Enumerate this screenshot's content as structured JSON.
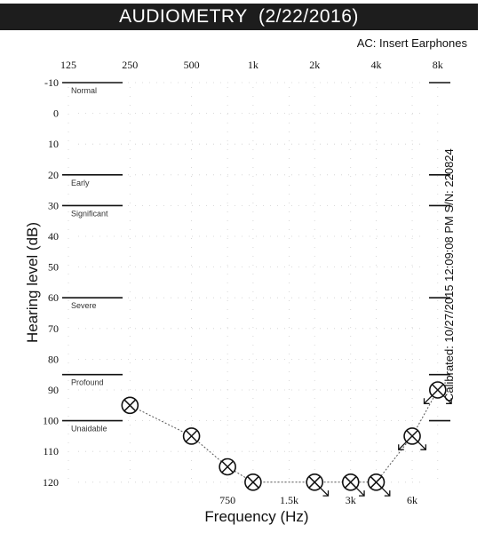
{
  "header": {
    "title": "AUDIOMETRY",
    "date": "(2/22/2016)",
    "transducer": "AC: Insert Earphones",
    "calibration": "Calibrated: 10/27/2015 12:09:08 PM  S/N: 220824"
  },
  "colors": {
    "title_bg": "#1d1d1d",
    "ink": "#111111",
    "grid": "#cfcfcf"
  },
  "chart_data": {
    "type": "scatter",
    "xlabel": "Frequency (Hz)",
    "ylabel": "Hearing level (dB)",
    "x_scale": "log",
    "ylim": [
      -10,
      120
    ],
    "y_inverted": true,
    "x_ticks_top": [
      "125",
      "250",
      "500",
      "1k",
      "2k",
      "4k",
      "8k"
    ],
    "x_ticks_bottom": [
      "750",
      "1.5k",
      "3k",
      "6k"
    ],
    "y_ticks": [
      "-10",
      "0",
      "10",
      "20",
      "30",
      "40",
      "50",
      "60",
      "70",
      "80",
      "90",
      "100",
      "110",
      "120"
    ],
    "grid": "dotted",
    "severity_bands": [
      {
        "label": "Normal",
        "level": -10
      },
      {
        "label": "Early",
        "level": 20
      },
      {
        "label": "Significant",
        "level": 30
      },
      {
        "label": "Severe",
        "level": 60
      },
      {
        "label": "Profound",
        "level": 85
      },
      {
        "label": "Unaidable",
        "level": 100
      }
    ],
    "series": [
      {
        "symbol": "circle-x",
        "points": [
          {
            "x": 250,
            "y": 95,
            "no_response": false
          },
          {
            "x": 500,
            "y": 105,
            "no_response": false
          },
          {
            "x": 750,
            "y": 115,
            "no_response": false
          },
          {
            "x": 1000,
            "y": 120,
            "no_response": false
          },
          {
            "x": 2000,
            "y": 120,
            "no_response": true
          },
          {
            "x": 3000,
            "y": 120,
            "no_response": true
          },
          {
            "x": 4000,
            "y": 120,
            "no_response": true
          },
          {
            "x": 6000,
            "y": 105,
            "no_response": true
          },
          {
            "x": 8000,
            "y": 90,
            "no_response": true
          }
        ]
      }
    ]
  }
}
